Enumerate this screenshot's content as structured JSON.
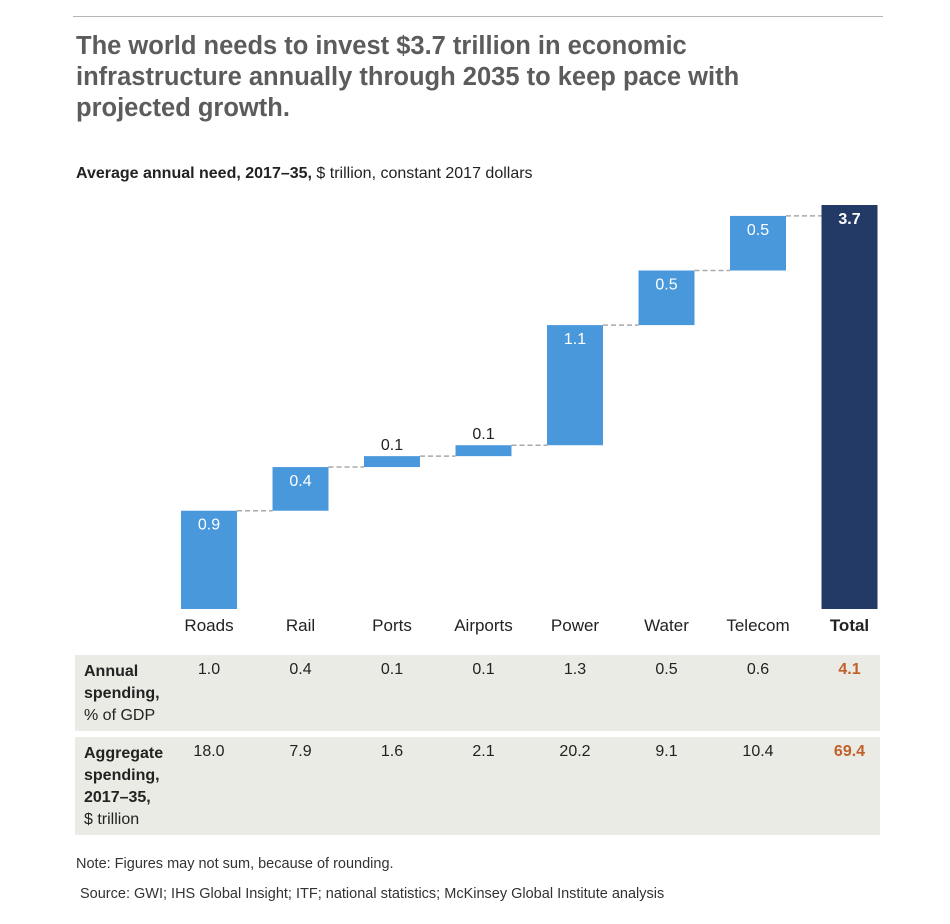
{
  "title": "The world needs to invest $3.7 trillion in economic infrastructure annually through 2035 to keep pace with projected growth.",
  "subtitle_bold": "Average annual need, 2017–35,",
  "subtitle_rest": " $ trillion, constant 2017 dollars",
  "chart_data": {
    "type": "bar",
    "subtype": "waterfall",
    "categories": [
      "Roads",
      "Rail",
      "Ports",
      "Airports",
      "Power",
      "Water",
      "Telecom",
      "Total"
    ],
    "values": [
      0.9,
      0.4,
      0.1,
      0.1,
      1.1,
      0.5,
      0.5,
      3.7
    ],
    "labels": [
      "0.9",
      "0.4",
      "0.1",
      "0.1",
      "1.1",
      "0.5",
      "0.5",
      "3.7"
    ],
    "is_total": [
      false,
      false,
      false,
      false,
      false,
      false,
      false,
      true
    ],
    "bold_categories": [
      "Total"
    ],
    "ylim": [
      0,
      3.7
    ],
    "colors": {
      "bar": "#4a98dc",
      "total": "#233a66",
      "connector": "#a9a9a9"
    }
  },
  "table": {
    "rows": [
      {
        "label": [
          "Annual",
          "spending,",
          "% of GDP"
        ],
        "bold_lines": 2,
        "values": [
          "1.0",
          "0.4",
          "0.1",
          "0.1",
          "1.3",
          "0.5",
          "0.6"
        ],
        "total": "4.1"
      },
      {
        "label": [
          "Aggregate",
          "spending,",
          "2017–35,",
          "$ trillion"
        ],
        "bold_lines": 3,
        "values": [
          "18.0",
          "7.9",
          "1.6",
          "2.1",
          "20.2",
          "9.1",
          "10.4"
        ],
        "total": "69.4"
      }
    ],
    "colors": {
      "background": "#ebebe5",
      "total_text": "#c0602a"
    }
  },
  "note": "Note: Figures may not sum, because of rounding.",
  "source": "Source: GWI; IHS Global Insight; ITF; national statistics; McKinsey Global Institute analysis"
}
